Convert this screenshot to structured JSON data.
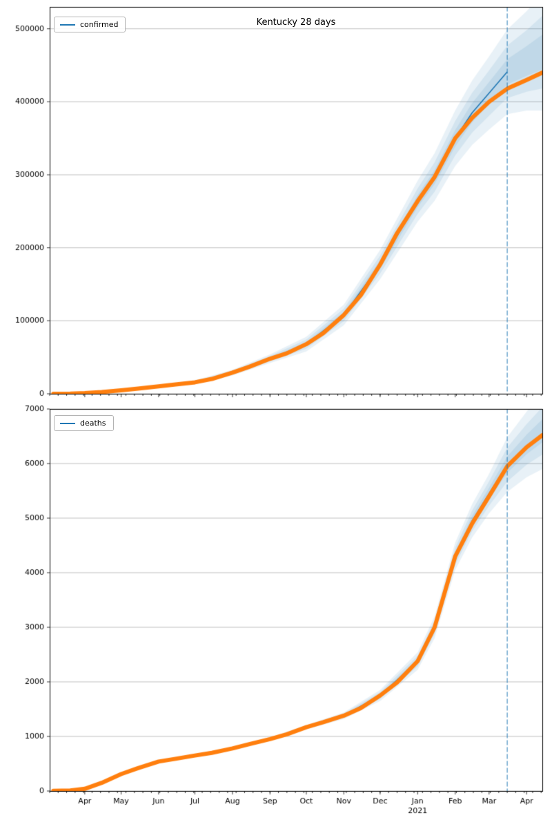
{
  "x_axis": {
    "start": "2020-03-03",
    "end": "2021-04-14",
    "minor_tick_days": 7,
    "month_ticks": [
      {
        "date": "2020-04-01",
        "label": "Apr"
      },
      {
        "date": "2020-05-01",
        "label": "May"
      },
      {
        "date": "2020-06-01",
        "label": "Jun"
      },
      {
        "date": "2020-07-01",
        "label": "Jul"
      },
      {
        "date": "2020-08-01",
        "label": "Aug"
      },
      {
        "date": "2020-09-01",
        "label": "Sep"
      },
      {
        "date": "2020-10-01",
        "label": "Oct"
      },
      {
        "date": "2020-11-01",
        "label": "Nov"
      },
      {
        "date": "2020-12-01",
        "label": "Dec"
      },
      {
        "date": "2021-01-01",
        "label": "Jan"
      },
      {
        "date": "2021-02-01",
        "label": "Feb"
      },
      {
        "date": "2021-03-01",
        "label": "Mar"
      },
      {
        "date": "2021-04-01",
        "label": "Apr"
      }
    ],
    "year_label": {
      "date": "2021-01-01",
      "text": "2021"
    }
  },
  "forecast_cutoff": "2021-03-16",
  "colors": {
    "actual": "#ff7f0e",
    "forecast": "#1f77b4",
    "band": "rgba(31,119,180,0.10)",
    "grid": "#b0b0b0",
    "vline": "rgba(31,119,180,0.75)",
    "frame": "#000000",
    "text": "#000000"
  },
  "chart_data": [
    {
      "type": "line",
      "title": "Kentucky 28 days",
      "legend": "confirmed",
      "ylim": [
        0,
        530000
      ],
      "yticks": [
        0,
        100000,
        200000,
        300000,
        400000,
        500000
      ],
      "series": {
        "actual": {
          "dates": [
            "2020-03-06",
            "2020-03-20",
            "2020-04-01",
            "2020-04-15",
            "2020-05-01",
            "2020-05-15",
            "2020-06-01",
            "2020-06-15",
            "2020-07-01",
            "2020-07-15",
            "2020-08-01",
            "2020-08-15",
            "2020-09-01",
            "2020-09-15",
            "2020-10-01",
            "2020-10-15",
            "2020-11-01",
            "2020-11-15",
            "2020-12-01",
            "2020-12-15",
            "2021-01-01",
            "2021-01-15",
            "2021-02-01",
            "2021-02-15",
            "2021-03-01",
            "2021-03-16",
            "2021-04-01",
            "2021-04-14"
          ],
          "values": [
            10,
            150,
            950,
            2400,
            4700,
            7200,
            10100,
            12700,
            15700,
            20300,
            29000,
            37000,
            48000,
            55500,
            68000,
            83000,
            108000,
            135000,
            177000,
            220000,
            264000,
            297000,
            350000,
            378000,
            400000,
            418000,
            430000,
            440000
          ]
        },
        "forecast": {
          "dates": [
            "2020-03-06",
            "2020-04-01",
            "2020-05-01",
            "2020-06-01",
            "2020-07-01",
            "2020-08-01",
            "2020-09-01",
            "2020-10-01",
            "2020-11-01",
            "2020-12-01",
            "2021-01-01",
            "2021-01-15",
            "2021-02-01",
            "2021-02-15",
            "2021-03-01",
            "2021-03-16",
            "2021-04-01",
            "2021-04-14"
          ],
          "values": [
            10,
            950,
            4700,
            10100,
            15700,
            29000,
            48000,
            68000,
            108000,
            177000,
            264000,
            297000,
            350000,
            385000,
            412000,
            441000,
            456000,
            468000
          ]
        },
        "uncertainty": {
          "dates": [
            "2020-03-06",
            "2020-06-01",
            "2020-08-01",
            "2020-09-01",
            "2020-10-01",
            "2020-11-01",
            "2020-12-01",
            "2021-01-01",
            "2021-02-01",
            "2021-03-01",
            "2021-03-16",
            "2021-04-01",
            "2021-04-14"
          ],
          "half_widths": [
            0,
            1500,
            4000,
            6000,
            10000,
            14000,
            20000,
            28000,
            38000,
            50000,
            58000,
            68000,
            80000
          ]
        }
      }
    },
    {
      "type": "line",
      "legend": "deaths",
      "ylim": [
        0,
        7000
      ],
      "yticks": [
        0,
        1000,
        2000,
        3000,
        4000,
        5000,
        6000,
        7000
      ],
      "series": {
        "actual": {
          "dates": [
            "2020-03-06",
            "2020-03-20",
            "2020-04-01",
            "2020-04-15",
            "2020-05-01",
            "2020-05-15",
            "2020-06-01",
            "2020-06-15",
            "2020-07-01",
            "2020-07-15",
            "2020-08-01",
            "2020-08-15",
            "2020-09-01",
            "2020-09-15",
            "2020-10-01",
            "2020-10-15",
            "2020-11-01",
            "2020-11-15",
            "2020-12-01",
            "2020-12-15",
            "2021-01-01",
            "2021-01-15",
            "2021-02-01",
            "2021-02-15",
            "2021-03-01",
            "2021-03-16",
            "2021-04-01",
            "2021-04-14"
          ],
          "values": [
            2,
            10,
            40,
            150,
            310,
            420,
            540,
            590,
            650,
            700,
            780,
            860,
            950,
            1040,
            1170,
            1260,
            1380,
            1520,
            1750,
            1990,
            2380,
            3000,
            4300,
            4900,
            5400,
            5950,
            6300,
            6520
          ]
        },
        "forecast": {
          "dates": [
            "2020-03-06",
            "2020-04-01",
            "2020-05-01",
            "2020-06-01",
            "2020-07-01",
            "2020-08-01",
            "2020-09-01",
            "2020-10-01",
            "2020-11-01",
            "2020-12-01",
            "2021-01-01",
            "2021-01-15",
            "2021-02-01",
            "2021-02-15",
            "2021-03-01",
            "2021-03-16",
            "2021-04-01",
            "2021-04-14"
          ],
          "values": [
            2,
            40,
            310,
            540,
            650,
            780,
            950,
            1170,
            1380,
            1750,
            2380,
            3000,
            4300,
            4950,
            5450,
            5980,
            6350,
            6600
          ]
        },
        "uncertainty": {
          "dates": [
            "2020-03-06",
            "2020-08-01",
            "2020-10-01",
            "2020-11-01",
            "2020-12-01",
            "2021-01-01",
            "2021-02-01",
            "2021-03-01",
            "2021-03-16",
            "2021-04-01",
            "2021-04-14"
          ],
          "half_widths": [
            0,
            20,
            40,
            60,
            100,
            160,
            250,
            360,
            500,
            600,
            700
          ]
        }
      }
    }
  ]
}
